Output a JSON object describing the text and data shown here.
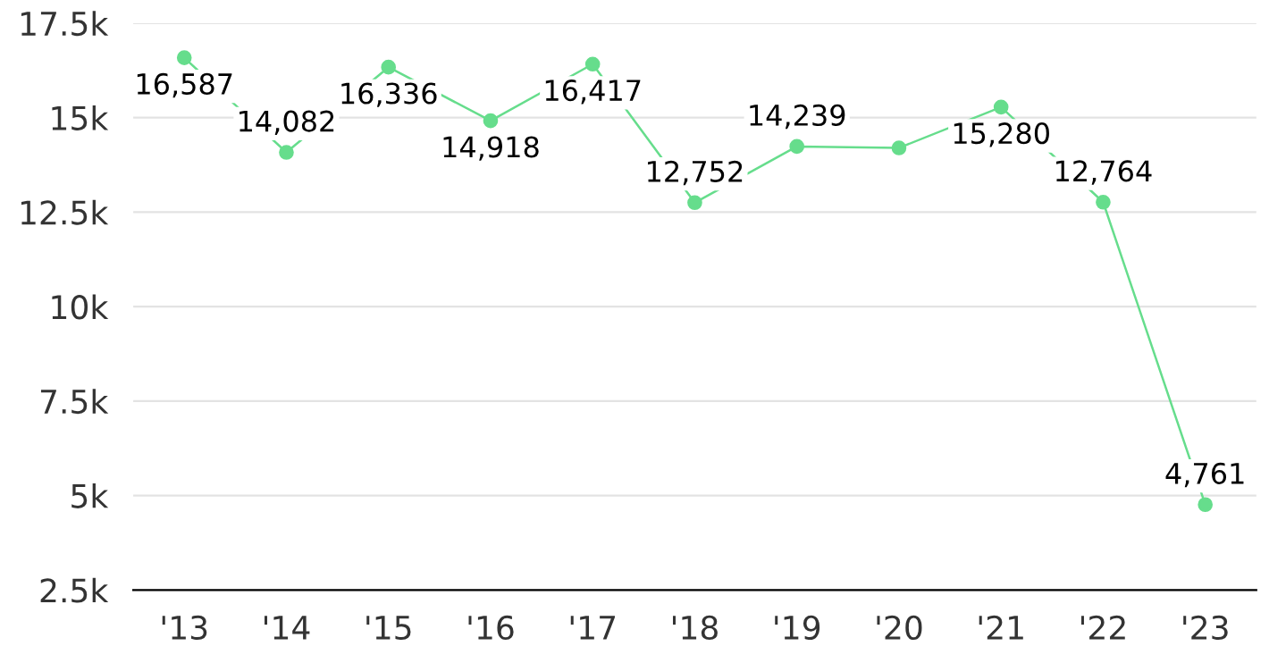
{
  "chart_data": {
    "type": "line",
    "categories": [
      "'13",
      "'14",
      "'15",
      "'16",
      "'17",
      "'18",
      "'19",
      "'20",
      "'21",
      "'22",
      "'23"
    ],
    "series": [
      {
        "color": "#66dd8c",
        "values": [
          16587,
          14082,
          16336,
          14918,
          16417,
          12752,
          14239,
          14200,
          15280,
          12764,
          4761
        ],
        "value_labels": [
          "16,587",
          "14,082",
          "16,336",
          "14,918",
          "16,417",
          "12,752",
          "14,239",
          null,
          "15,280",
          "12,764",
          "4,761"
        ]
      }
    ],
    "ylim": [
      2500,
      17500
    ],
    "yticks": [
      {
        "value": 2500,
        "label": "2.5k"
      },
      {
        "value": 5000,
        "label": "5k"
      },
      {
        "value": 7500,
        "label": "7.5k"
      },
      {
        "value": 10000,
        "label": "10k"
      },
      {
        "value": 12500,
        "label": "12.5k"
      },
      {
        "value": 15000,
        "label": "15k"
      },
      {
        "value": 17500,
        "label": "17.5k"
      }
    ],
    "grid": "y",
    "marker": "circle",
    "line_style": "solid"
  }
}
